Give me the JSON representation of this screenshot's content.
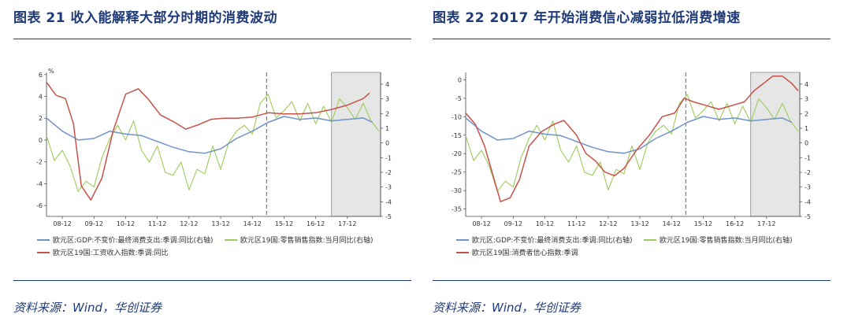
{
  "colors": {
    "title": "#1f3a78",
    "gdp": "#6f93c8",
    "retail": "#9ccc5a",
    "third": "#c8524a",
    "shade": "#e6e6e6",
    "axis": "#444444"
  },
  "chart_data": [
    {
      "type": "line",
      "title": "图表 21 收入能解释大部分时期的消费波动",
      "source": "资料来源：Wind，华创证券",
      "left_axis": {
        "unit": "%",
        "ticks": [
          6,
          4,
          2,
          0,
          -2,
          -4,
          -6
        ],
        "range": [
          -7,
          6.2
        ]
      },
      "right_axis": {
        "ticks": [
          4,
          3,
          2,
          1,
          0,
          -1,
          -2,
          -3,
          -4,
          -5
        ],
        "range": [
          -5,
          4.8
        ]
      },
      "x_ticks": [
        "08-12",
        "09-12",
        "10-12",
        "11-12",
        "12-12",
        "13-12",
        "14-12",
        "15-12",
        "16-12",
        "17-12"
      ],
      "x_range": [
        2008.0,
        2018.55
      ],
      "vertical_line_x": 2014.95,
      "shaded_from_x": 2017.0,
      "series": [
        {
          "name": "欧元区:GDP:不变价:最终消费支出:季调:同比(右轴)",
          "axis": "right",
          "x": [
            2008.0,
            2008.5,
            2009.0,
            2009.5,
            2010.0,
            2010.5,
            2011.0,
            2011.5,
            2012.0,
            2012.5,
            2013.0,
            2013.5,
            2014.0,
            2014.5,
            2015.0,
            2015.5,
            2016.0,
            2016.5,
            2017.0,
            2017.5,
            2018.0,
            2018.3
          ],
          "y": [
            1.7,
            0.8,
            0.2,
            0.3,
            0.8,
            0.6,
            0.5,
            0.1,
            -0.3,
            -0.6,
            -0.7,
            -0.4,
            0.3,
            0.8,
            1.4,
            1.8,
            1.6,
            1.7,
            1.5,
            1.6,
            1.7,
            1.4
          ]
        },
        {
          "name": "欧元区19国:零售销售指数:当月同比(右轴)",
          "axis": "right",
          "x": [
            2008.0,
            2008.25,
            2008.5,
            2008.75,
            2009.0,
            2009.25,
            2009.5,
            2009.75,
            2010.0,
            2010.25,
            2010.5,
            2010.75,
            2011.0,
            2011.25,
            2011.5,
            2011.75,
            2012.0,
            2012.25,
            2012.5,
            2012.75,
            2013.0,
            2013.25,
            2013.5,
            2013.75,
            2014.0,
            2014.25,
            2014.5,
            2014.75,
            2015.0,
            2015.25,
            2015.5,
            2015.75,
            2016.0,
            2016.25,
            2016.5,
            2016.75,
            2017.0,
            2017.25,
            2017.5,
            2017.75,
            2018.0,
            2018.25,
            2018.5
          ],
          "y": [
            0.5,
            -1.2,
            -0.5,
            -1.6,
            -3.3,
            -2.6,
            -3.0,
            -1.0,
            0.3,
            1.2,
            0.2,
            1.5,
            -0.5,
            -1.3,
            -0.2,
            -2.0,
            -2.2,
            -1.3,
            -3.2,
            -1.8,
            -2.1,
            -0.2,
            -1.8,
            0.0,
            0.8,
            1.2,
            0.6,
            2.7,
            3.3,
            1.7,
            2.2,
            2.8,
            1.5,
            2.7,
            1.3,
            2.5,
            1.4,
            3.0,
            2.4,
            1.6,
            2.7,
            1.5,
            0.8
          ]
        },
        {
          "name": "欧元区19国:工资收入指数:季调:同比",
          "axis": "left",
          "x": [
            2008.0,
            2008.3,
            2008.6,
            2008.85,
            2009.1,
            2009.4,
            2009.75,
            2010.1,
            2010.5,
            2010.9,
            2011.2,
            2011.6,
            2012.0,
            2012.4,
            2012.8,
            2013.2,
            2013.6,
            2014.0,
            2014.5,
            2015.0,
            2015.5,
            2016.0,
            2016.5,
            2017.0,
            2017.5,
            2018.0,
            2018.2
          ],
          "y": [
            5.3,
            4.1,
            3.8,
            1.5,
            -4.2,
            -5.5,
            -3.5,
            0.8,
            4.2,
            4.7,
            3.8,
            2.3,
            1.7,
            1.0,
            1.4,
            1.9,
            2.0,
            2.0,
            2.1,
            2.5,
            2.4,
            2.4,
            2.5,
            2.8,
            3.2,
            3.8,
            4.3
          ]
        }
      ]
    },
    {
      "type": "line",
      "title": "图表 22 2017 年开始消费信心减弱拉低消费增速",
      "source": "资料来源：Wind，华创证券",
      "left_axis": {
        "ticks": [
          0,
          -5,
          -10,
          -15,
          -20,
          -25,
          -30,
          -35
        ],
        "range": [
          -37,
          2
        ]
      },
      "right_axis": {
        "ticks": [
          4,
          3,
          2,
          1,
          0,
          -1,
          -2,
          -3,
          -4,
          -5
        ],
        "range": [
          -5,
          4.8
        ]
      },
      "x_ticks": [
        "08-12",
        "09-12",
        "10-12",
        "11-12",
        "12-12",
        "13-12",
        "14-12",
        "15-12",
        "16-12",
        "17-12"
      ],
      "x_range": [
        2008.0,
        2018.55
      ],
      "vertical_line_x": 2014.95,
      "shaded_from_x": 2017.0,
      "series": [
        {
          "name": "欧元区:GDP:不变价:最终消费支出:季调:同比(右轴)",
          "axis": "right",
          "x": [
            2008.0,
            2008.5,
            2009.0,
            2009.5,
            2010.0,
            2010.5,
            2011.0,
            2011.5,
            2012.0,
            2012.5,
            2013.0,
            2013.5,
            2014.0,
            2014.5,
            2015.0,
            2015.5,
            2016.0,
            2016.5,
            2017.0,
            2017.5,
            2018.0,
            2018.3
          ],
          "y": [
            1.7,
            0.8,
            0.2,
            0.3,
            0.8,
            0.6,
            0.5,
            0.1,
            -0.3,
            -0.6,
            -0.7,
            -0.4,
            0.3,
            0.8,
            1.4,
            1.8,
            1.6,
            1.7,
            1.5,
            1.6,
            1.7,
            1.4
          ]
        },
        {
          "name": "欧元区19国:零售销售指数:当月同比(右轴)",
          "axis": "right",
          "x": [
            2008.0,
            2008.25,
            2008.5,
            2008.75,
            2009.0,
            2009.25,
            2009.5,
            2009.75,
            2010.0,
            2010.25,
            2010.5,
            2010.75,
            2011.0,
            2011.25,
            2011.5,
            2011.75,
            2012.0,
            2012.25,
            2012.5,
            2012.75,
            2013.0,
            2013.25,
            2013.5,
            2013.75,
            2014.0,
            2014.25,
            2014.5,
            2014.75,
            2015.0,
            2015.25,
            2015.5,
            2015.75,
            2016.0,
            2016.25,
            2016.5,
            2016.75,
            2017.0,
            2017.25,
            2017.5,
            2017.75,
            2018.0,
            2018.25,
            2018.5
          ],
          "y": [
            0.5,
            -1.2,
            -0.5,
            -1.6,
            -3.3,
            -2.6,
            -3.0,
            -1.0,
            0.3,
            1.2,
            0.2,
            1.5,
            -0.5,
            -1.3,
            -0.2,
            -2.0,
            -2.2,
            -1.3,
            -3.2,
            -1.8,
            -2.1,
            -0.2,
            -1.8,
            0.0,
            0.8,
            1.2,
            0.6,
            2.7,
            3.3,
            1.7,
            2.2,
            2.8,
            1.5,
            2.7,
            1.3,
            2.5,
            1.4,
            3.0,
            2.4,
            1.6,
            2.7,
            1.5,
            0.8
          ]
        },
        {
          "name": "欧元区19国:消费者信心指数:季调",
          "axis": "left",
          "x": [
            2008.0,
            2008.3,
            2008.6,
            2008.9,
            2009.1,
            2009.4,
            2009.7,
            2010.0,
            2010.4,
            2010.8,
            2011.1,
            2011.5,
            2011.8,
            2012.1,
            2012.4,
            2012.7,
            2013.0,
            2013.4,
            2013.8,
            2014.2,
            2014.6,
            2014.9,
            2015.2,
            2015.6,
            2016.0,
            2016.4,
            2016.8,
            2017.1,
            2017.4,
            2017.7,
            2018.0,
            2018.3,
            2018.5
          ],
          "y": [
            -9,
            -12,
            -18,
            -27,
            -33,
            -32,
            -27,
            -18,
            -14,
            -12,
            -11,
            -15,
            -20,
            -22,
            -25,
            -26,
            -24,
            -19,
            -15,
            -10,
            -9,
            -5,
            -6,
            -7,
            -8,
            -7,
            -6,
            -3,
            -1,
            1,
            1,
            -1,
            -3
          ]
        }
      ]
    }
  ]
}
